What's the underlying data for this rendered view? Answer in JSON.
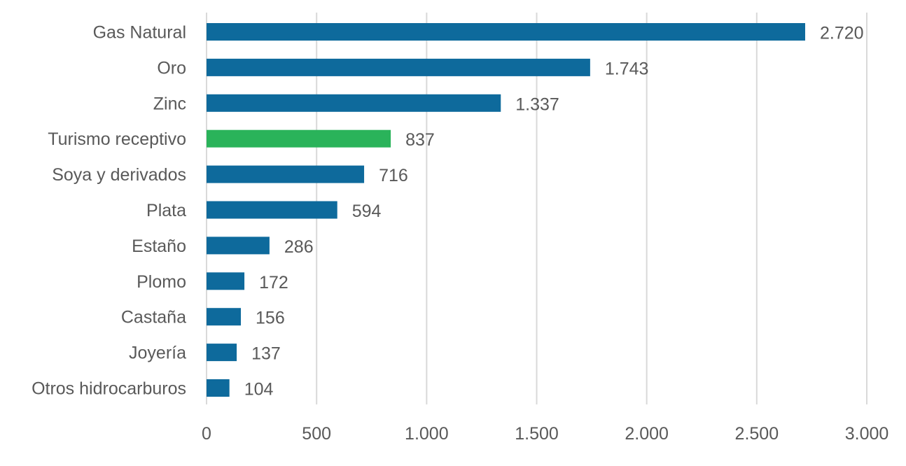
{
  "chart_data": {
    "type": "bar",
    "orientation": "horizontal",
    "categories": [
      "Gas Natural",
      "Oro",
      "Zinc",
      "Turismo receptivo",
      "Soya y derivados",
      "Plata",
      "Estaño",
      "Plomo",
      "Castaña",
      "Joyería",
      "Otros hidrocarburos"
    ],
    "values": [
      2720,
      1743,
      1337,
      837,
      716,
      594,
      286,
      172,
      156,
      137,
      104
    ],
    "value_labels": [
      "2.720",
      "1.743",
      "1.337",
      "837",
      "716",
      "594",
      "286",
      "172",
      "156",
      "137",
      "104"
    ],
    "highlight_category": "Turismo receptivo",
    "colors": {
      "default": "#0e6a9c",
      "highlight": "#2ab35a",
      "grid": "#d9d9d9",
      "text": "#595959"
    },
    "xlim": [
      0,
      3000
    ],
    "x_ticks": [
      0,
      500,
      1000,
      1500,
      2000,
      2500,
      3000
    ],
    "x_tick_labels": [
      "0",
      "500",
      "1.000",
      "1.500",
      "2.000",
      "2.500",
      "3.000"
    ],
    "grid": true,
    "legend": "none",
    "title": "",
    "xlabel": "",
    "ylabel": ""
  }
}
